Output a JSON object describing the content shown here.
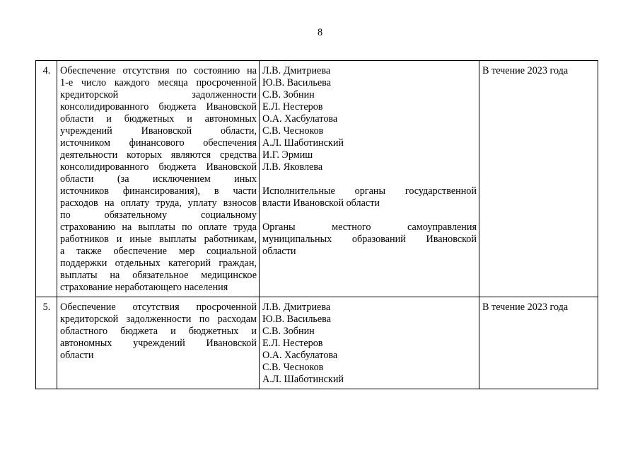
{
  "page_number": "8",
  "rows": [
    {
      "num": "4.",
      "task_lines": [
        {
          "t": "Обеспечение отсутствия по состоянию на",
          "j": true
        },
        {
          "t": "1-е число каждого месяца просроченной",
          "j": true
        },
        {
          "t": "кредиторской задолженности",
          "j": true
        },
        {
          "t": "консолидированного бюджета Ивановской",
          "j": true
        },
        {
          "t": "области и бюджетных и автономных",
          "j": true
        },
        {
          "t": "учреждений Ивановской области,",
          "j": true
        },
        {
          "t": "источником финансового обеспечения",
          "j": true
        },
        {
          "t": "деятельности которых являются средства",
          "j": true
        },
        {
          "t": "консолидированного бюджета Ивановской",
          "j": true
        },
        {
          "t": "области (за исключением иных",
          "j": true
        },
        {
          "t": "источников финансирования), в части",
          "j": true
        },
        {
          "t": "расходов на оплату труда, уплату взносов",
          "j": true
        },
        {
          "t": "по обязательному социальному",
          "j": true
        },
        {
          "t": "страхованию на выплаты по оплате труда",
          "j": true
        },
        {
          "t": "работников и иные выплаты работникам,",
          "j": true
        },
        {
          "t": "а также обеспечение мер социальной",
          "j": true
        },
        {
          "t": "поддержки отдельных категорий граждан,",
          "j": true
        },
        {
          "t": "выплаты на обязательное медицинское",
          "j": true
        },
        {
          "t": "страхование неработающего населения",
          "j": false
        }
      ],
      "responsible": [
        "Л.В. Дмитриева",
        "Ю.В. Васильева",
        "С.В. Зобнин",
        "Е.Л. Нестеров",
        "О.А. Хасбулатова",
        "С.В. Чесноков",
        "А.Л. Шаботинский",
        "И.Г. Эрмиш",
        "Л.В. Яковлева"
      ],
      "bodies": [
        [
          {
            "t": "Исполнительные органы государственной",
            "j": true
          },
          {
            "t": "власти Ивановской области",
            "j": false
          }
        ],
        [
          {
            "t": "Органы местного самоуправления",
            "j": true
          },
          {
            "t": "муниципальных образований Ивановской",
            "j": true
          },
          {
            "t": "области",
            "j": false
          }
        ]
      ],
      "deadline": "В течение 2023 года"
    },
    {
      "num": "5.",
      "task_lines": [
        {
          "t": "Обеспечение отсутствия просроченной",
          "j": true
        },
        {
          "t": "кредиторской задолженности по расходам",
          "j": true
        },
        {
          "t": "областного бюджета и бюджетных и",
          "j": true
        },
        {
          "t": "автономных учреждений Ивановской",
          "j": true
        },
        {
          "t": "области",
          "j": false
        }
      ],
      "responsible": [
        "Л.В. Дмитриева",
        "Ю.В. Васильева",
        "С.В. Зобнин",
        "Е.Л. Нестеров",
        "О.А. Хасбулатова",
        "С.В. Чесноков",
        "А.Л. Шаботинский"
      ],
      "bodies": [],
      "deadline": "В течение 2023 года"
    }
  ]
}
